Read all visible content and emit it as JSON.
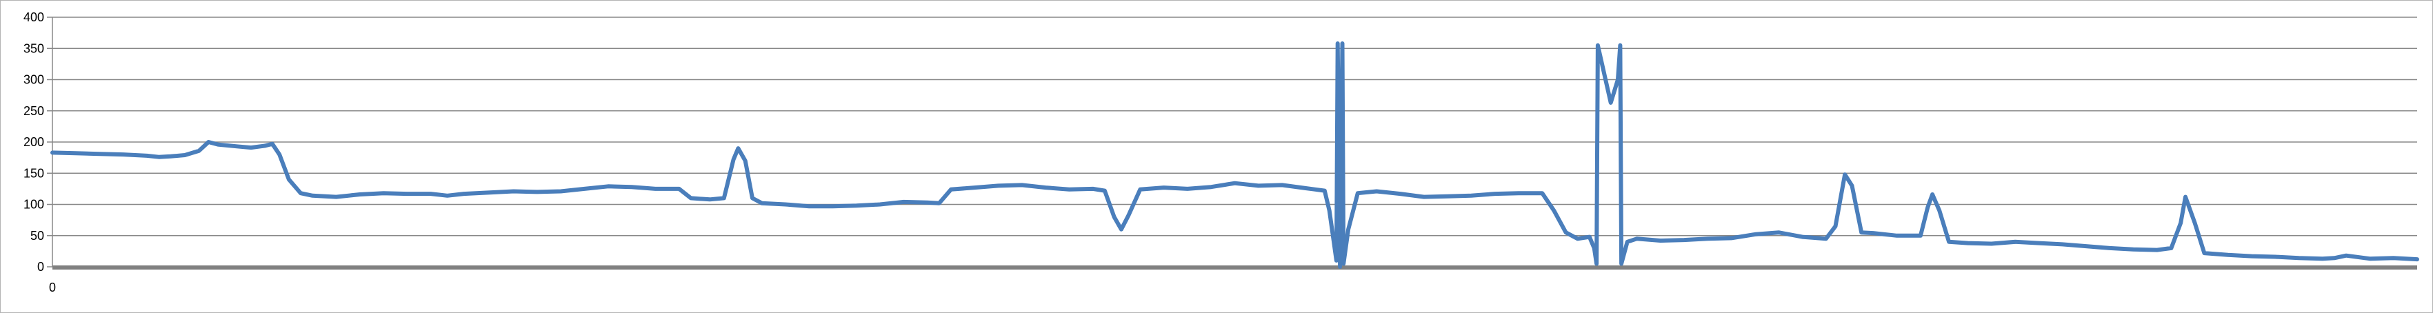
{
  "chart_data": {
    "type": "line",
    "title": "",
    "xlabel": "",
    "ylabel": "",
    "ylim": [
      0,
      400
    ],
    "yticks": [
      0,
      50,
      100,
      150,
      200,
      250,
      300,
      350,
      400
    ],
    "x_tick_labels": [
      "0"
    ],
    "grid": true,
    "legend": "none",
    "colors": {
      "line": "#4a7ebb",
      "grid": "#888888",
      "axis": "#888888",
      "baseline": "#808080"
    },
    "x": [
      0,
      2,
      4,
      6,
      8,
      10,
      12,
      14,
      16,
      18,
      20,
      22,
      24,
      26,
      28,
      30,
      32,
      34,
      36,
      38,
      40,
      42,
      44,
      46,
      48,
      50,
      52,
      54,
      56,
      58,
      60,
      62,
      64,
      66,
      68,
      70,
      72,
      74,
      76,
      78,
      80,
      82,
      84,
      86,
      88,
      90,
      92,
      94,
      96,
      98,
      100
    ],
    "series": [
      {
        "name": "",
        "points": [
          [
            0,
            183
          ],
          [
            1,
            182
          ],
          [
            2,
            181
          ],
          [
            3,
            180
          ],
          [
            4,
            178
          ],
          [
            4.5,
            176
          ],
          [
            5,
            177
          ],
          [
            5.6,
            179
          ],
          [
            6.2,
            186
          ],
          [
            6.6,
            200
          ],
          [
            7.0,
            196
          ],
          [
            7.8,
            193
          ],
          [
            8.4,
            191
          ],
          [
            9.0,
            194
          ],
          [
            9.3,
            197
          ],
          [
            9.6,
            180
          ],
          [
            10.0,
            140
          ],
          [
            10.5,
            118
          ],
          [
            11.0,
            114
          ],
          [
            12.0,
            112
          ],
          [
            13.0,
            116
          ],
          [
            14.0,
            118
          ],
          [
            15.0,
            117
          ],
          [
            16.0,
            117
          ],
          [
            16.7,
            114
          ],
          [
            17.4,
            117
          ],
          [
            18.5,
            119
          ],
          [
            19.5,
            121
          ],
          [
            20.5,
            120
          ],
          [
            21.5,
            121
          ],
          [
            22.5,
            125
          ],
          [
            23.5,
            129
          ],
          [
            24.5,
            128
          ],
          [
            25.5,
            125
          ],
          [
            26.5,
            125
          ],
          [
            27.0,
            110
          ],
          [
            27.8,
            108
          ],
          [
            28.4,
            110
          ],
          [
            28.8,
            172
          ],
          [
            29.0,
            190
          ],
          [
            29.3,
            170
          ],
          [
            29.6,
            110
          ],
          [
            30.0,
            102
          ],
          [
            31.0,
            100
          ],
          [
            32.0,
            97
          ],
          [
            33.0,
            97
          ],
          [
            34.0,
            98
          ],
          [
            35.0,
            100
          ],
          [
            36.0,
            104
          ],
          [
            37.0,
            103
          ],
          [
            37.5,
            102
          ],
          [
            38.0,
            124
          ],
          [
            39.0,
            127
          ],
          [
            40.0,
            130
          ],
          [
            41.0,
            131
          ],
          [
            42.0,
            127
          ],
          [
            43.0,
            124
          ],
          [
            44.0,
            125
          ],
          [
            44.5,
            122
          ],
          [
            44.9,
            80
          ],
          [
            45.2,
            60
          ],
          [
            45.5,
            82
          ],
          [
            46.0,
            124
          ],
          [
            47.0,
            127
          ],
          [
            48.0,
            125
          ],
          [
            49.0,
            128
          ],
          [
            50.0,
            134
          ],
          [
            51.0,
            130
          ],
          [
            52.0,
            131
          ],
          [
            53.0,
            126
          ],
          [
            53.8,
            122
          ],
          [
            54.0,
            90
          ],
          [
            54.3,
            10
          ],
          [
            54.35,
            358
          ],
          [
            54.45,
            0
          ],
          [
            54.55,
            358
          ],
          [
            54.6,
            5
          ],
          [
            54.8,
            60
          ],
          [
            55.2,
            118
          ],
          [
            56.0,
            121
          ],
          [
            57.0,
            117
          ],
          [
            58.0,
            112
          ],
          [
            59.0,
            113
          ],
          [
            60.0,
            114
          ],
          [
            61.0,
            117
          ],
          [
            62.0,
            118
          ],
          [
            63.0,
            118
          ],
          [
            63.5,
            90
          ],
          [
            64.0,
            55
          ],
          [
            64.5,
            45
          ],
          [
            65.0,
            48
          ],
          [
            65.2,
            30
          ],
          [
            65.3,
            5
          ],
          [
            65.35,
            355
          ],
          [
            65.9,
            263
          ],
          [
            66.2,
            300
          ],
          [
            66.3,
            355
          ],
          [
            66.35,
            5
          ],
          [
            66.6,
            40
          ],
          [
            67.0,
            45
          ],
          [
            68.0,
            42
          ],
          [
            69.0,
            43
          ],
          [
            70.0,
            45
          ],
          [
            71.0,
            46
          ],
          [
            72.0,
            52
          ],
          [
            73.0,
            55
          ],
          [
            74.0,
            48
          ],
          [
            75.0,
            45
          ],
          [
            75.4,
            65
          ],
          [
            75.8,
            148
          ],
          [
            76.1,
            130
          ],
          [
            76.5,
            55
          ],
          [
            77.0,
            54
          ],
          [
            78.0,
            50
          ],
          [
            79.0,
            50
          ],
          [
            79.3,
            95
          ],
          [
            79.5,
            116
          ],
          [
            79.8,
            90
          ],
          [
            80.2,
            40
          ],
          [
            81.0,
            38
          ],
          [
            82.0,
            37
          ],
          [
            83.0,
            40
          ],
          [
            84.0,
            38
          ],
          [
            85.0,
            36
          ],
          [
            86.0,
            33
          ],
          [
            87.0,
            30
          ],
          [
            88.0,
            28
          ],
          [
            89.0,
            27
          ],
          [
            89.6,
            30
          ],
          [
            90.0,
            70
          ],
          [
            90.2,
            112
          ],
          [
            90.6,
            70
          ],
          [
            91.0,
            22
          ],
          [
            92.0,
            19
          ],
          [
            93.0,
            17
          ],
          [
            94.0,
            16
          ],
          [
            95.0,
            14
          ],
          [
            96.0,
            13
          ],
          [
            96.5,
            14
          ],
          [
            97.0,
            18
          ],
          [
            98.0,
            13
          ],
          [
            99.0,
            14
          ],
          [
            100.0,
            12
          ]
        ]
      }
    ]
  }
}
